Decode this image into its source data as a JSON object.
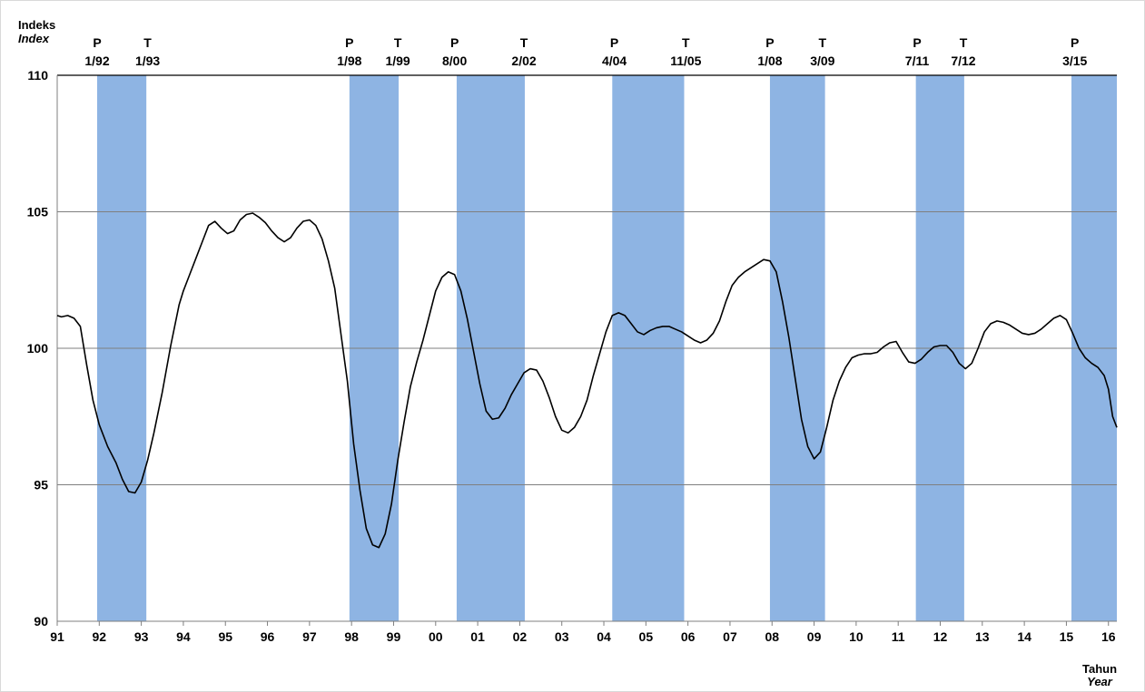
{
  "chart_data": {
    "type": "line",
    "ylabel": "Indeks",
    "ylabel_en": "Index",
    "xlabel": "Tahun",
    "xlabel_en": "Year",
    "ylim": [
      90,
      110
    ],
    "yticks": [
      90,
      95,
      100,
      105,
      110
    ],
    "xlim": [
      1991.0,
      2016.2
    ],
    "grid": true,
    "x_tick_labels": [
      {
        "x": 1991,
        "label": "91"
      },
      {
        "x": 1992,
        "label": "92"
      },
      {
        "x": 1993,
        "label": "93"
      },
      {
        "x": 1994,
        "label": "94"
      },
      {
        "x": 1995,
        "label": "95"
      },
      {
        "x": 1996,
        "label": "96"
      },
      {
        "x": 1997,
        "label": "97"
      },
      {
        "x": 1998,
        "label": "98"
      },
      {
        "x": 1999,
        "label": "99"
      },
      {
        "x": 2000,
        "label": "00"
      },
      {
        "x": 2001,
        "label": "01"
      },
      {
        "x": 2002,
        "label": "02"
      },
      {
        "x": 2003,
        "label": "03"
      },
      {
        "x": 2004,
        "label": "04"
      },
      {
        "x": 2005,
        "label": "05"
      },
      {
        "x": 2006,
        "label": "06"
      },
      {
        "x": 2007,
        "label": "07"
      },
      {
        "x": 2008,
        "label": "08"
      },
      {
        "x": 2009,
        "label": "09"
      },
      {
        "x": 2010,
        "label": "10"
      },
      {
        "x": 2011,
        "label": "11"
      },
      {
        "x": 2012,
        "label": "12"
      },
      {
        "x": 2013,
        "label": "13"
      },
      {
        "x": 2014,
        "label": "14"
      },
      {
        "x": 2015,
        "label": "15"
      },
      {
        "x": 2016,
        "label": "16"
      }
    ],
    "shaded_periods": [
      {
        "start": 1991.95,
        "end": 1993.12
      },
      {
        "start": 1997.95,
        "end": 1999.12
      },
      {
        "start": 2000.5,
        "end": 2002.12
      },
      {
        "start": 2004.2,
        "end": 2005.91
      },
      {
        "start": 2007.95,
        "end": 2009.26
      },
      {
        "start": 2011.42,
        "end": 2012.57
      },
      {
        "start": 2015.12,
        "end": 2016.25
      }
    ],
    "annotations": [
      {
        "text": "P",
        "date": "1/92",
        "x": 1991.95
      },
      {
        "text": "T",
        "date": "1/93",
        "x": 1993.15
      },
      {
        "text": "P",
        "date": "1/98",
        "x": 1997.95
      },
      {
        "text": "T",
        "date": "1/99",
        "x": 1999.1
      },
      {
        "text": "P",
        "date": "8/00",
        "x": 2000.45
      },
      {
        "text": "T",
        "date": "2/02",
        "x": 2002.1
      },
      {
        "text": "P",
        "date": "4/04",
        "x": 2004.25
      },
      {
        "text": "T",
        "date": "11/05",
        "x": 2005.95
      },
      {
        "text": "P",
        "date": "1/08",
        "x": 2007.95
      },
      {
        "text": "T",
        "date": "3/09",
        "x": 2009.2
      },
      {
        "text": "P",
        "date": "7/11",
        "x": 2011.45
      },
      {
        "text": "T",
        "date": "7/12",
        "x": 2012.55
      },
      {
        "text": "P",
        "date": "3/15",
        "x": 2015.2
      }
    ],
    "series": [
      {
        "line_color": "#000000",
        "x": [
          1991.0,
          1991.1,
          1991.25,
          1991.4,
          1991.55,
          1991.7,
          1991.85,
          1992.0,
          1992.2,
          1992.4,
          1992.55,
          1992.7,
          1992.85,
          1993.0,
          1993.15,
          1993.3,
          1993.5,
          1993.7,
          1993.9,
          1994.0,
          1994.15,
          1994.3,
          1994.45,
          1994.6,
          1994.75,
          1994.9,
          1995.05,
          1995.2,
          1995.35,
          1995.5,
          1995.65,
          1995.8,
          1995.95,
          1996.1,
          1996.25,
          1996.4,
          1996.55,
          1996.7,
          1996.85,
          1997.0,
          1997.15,
          1997.3,
          1997.45,
          1997.6,
          1997.75,
          1997.9,
          1998.05,
          1998.2,
          1998.35,
          1998.5,
          1998.65,
          1998.8,
          1998.95,
          1999.1,
          1999.25,
          1999.4,
          1999.55,
          1999.7,
          1999.85,
          2000.0,
          2000.15,
          2000.3,
          2000.45,
          2000.6,
          2000.75,
          2000.9,
          2001.05,
          2001.2,
          2001.35,
          2001.5,
          2001.65,
          2001.8,
          2001.95,
          2002.1,
          2002.25,
          2002.4,
          2002.55,
          2002.7,
          2002.85,
          2003.0,
          2003.15,
          2003.3,
          2003.45,
          2003.6,
          2003.75,
          2003.9,
          2004.05,
          2004.2,
          2004.35,
          2004.5,
          2004.65,
          2004.8,
          2004.95,
          2005.1,
          2005.25,
          2005.4,
          2005.55,
          2005.7,
          2005.85,
          2006.0,
          2006.15,
          2006.3,
          2006.45,
          2006.6,
          2006.75,
          2006.9,
          2007.05,
          2007.2,
          2007.35,
          2007.5,
          2007.65,
          2007.8,
          2007.95,
          2008.1,
          2008.25,
          2008.4,
          2008.55,
          2008.7,
          2008.85,
          2009.0,
          2009.15,
          2009.3,
          2009.45,
          2009.6,
          2009.75,
          2009.9,
          2010.05,
          2010.2,
          2010.35,
          2010.5,
          2010.65,
          2010.8,
          2010.95,
          2011.1,
          2011.25,
          2011.4,
          2011.55,
          2011.7,
          2011.85,
          2012.0,
          2012.15,
          2012.3,
          2012.45,
          2012.6,
          2012.75,
          2012.9,
          2013.05,
          2013.2,
          2013.35,
          2013.5,
          2013.65,
          2013.8,
          2013.95,
          2014.1,
          2014.25,
          2014.4,
          2014.55,
          2014.7,
          2014.85,
          2015.0,
          2015.15,
          2015.3,
          2015.45,
          2015.6,
          2015.75,
          2015.9,
          2016.0,
          2016.1,
          2016.2
        ],
        "y": [
          101.2,
          101.15,
          101.2,
          101.1,
          100.8,
          99.4,
          98.1,
          97.2,
          96.4,
          95.8,
          95.2,
          94.75,
          94.7,
          95.1,
          95.9,
          96.9,
          98.4,
          100.1,
          101.6,
          102.1,
          102.7,
          103.3,
          103.9,
          104.5,
          104.65,
          104.4,
          104.2,
          104.3,
          104.7,
          104.9,
          104.95,
          104.8,
          104.6,
          104.3,
          104.05,
          103.9,
          104.05,
          104.4,
          104.65,
          104.7,
          104.5,
          104.0,
          103.2,
          102.2,
          100.5,
          98.8,
          96.5,
          94.8,
          93.4,
          92.8,
          92.7,
          93.2,
          94.3,
          95.9,
          97.3,
          98.6,
          99.5,
          100.3,
          101.2,
          102.1,
          102.6,
          102.8,
          102.7,
          102.1,
          101.1,
          99.9,
          98.7,
          97.7,
          97.4,
          97.45,
          97.8,
          98.3,
          98.7,
          99.1,
          99.25,
          99.2,
          98.8,
          98.2,
          97.5,
          97.0,
          96.9,
          97.1,
          97.5,
          98.1,
          99.0,
          99.8,
          100.6,
          101.2,
          101.3,
          101.2,
          100.9,
          100.6,
          100.5,
          100.65,
          100.75,
          100.8,
          100.8,
          100.7,
          100.6,
          100.45,
          100.3,
          100.2,
          100.3,
          100.55,
          101.0,
          101.7,
          102.3,
          102.6,
          102.8,
          102.95,
          103.1,
          103.25,
          103.2,
          102.8,
          101.7,
          100.4,
          98.9,
          97.4,
          96.4,
          95.95,
          96.2,
          97.1,
          98.1,
          98.8,
          99.3,
          99.65,
          99.75,
          99.8,
          99.8,
          99.85,
          100.05,
          100.2,
          100.25,
          99.85,
          99.5,
          99.45,
          99.6,
          99.85,
          100.05,
          100.1,
          100.1,
          99.85,
          99.45,
          99.25,
          99.45,
          100.0,
          100.6,
          100.9,
          101.0,
          100.95,
          100.85,
          100.7,
          100.55,
          100.5,
          100.55,
          100.7,
          100.9,
          101.1,
          101.2,
          101.05,
          100.55,
          100.0,
          99.65,
          99.45,
          99.3,
          99.0,
          98.5,
          97.5,
          97.1
        ]
      }
    ]
  }
}
